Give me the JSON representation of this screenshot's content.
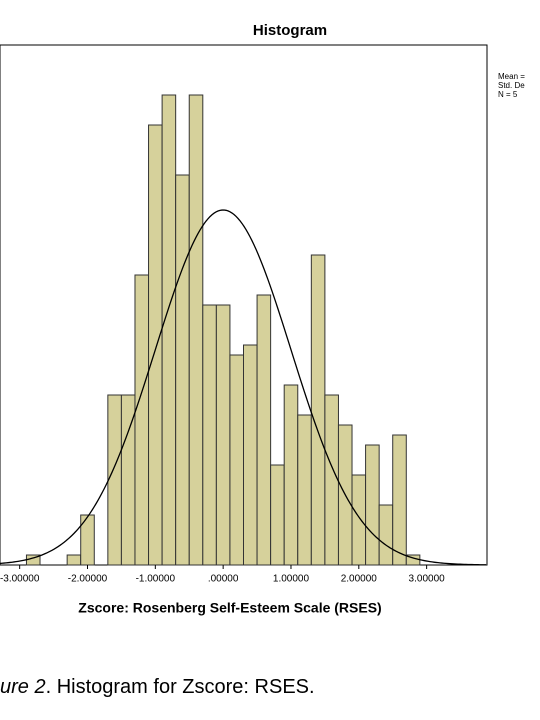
{
  "chart_data": {
    "type": "histogram",
    "title": "Histogram",
    "xlabel": "Zscore:  Rosenberg Self-Esteem Scale (RSES)",
    "bins": [
      -2.9,
      -2.7,
      -2.5,
      -2.3,
      -2.1,
      -1.9,
      -1.7,
      -1.5,
      -1.3,
      -1.1,
      -0.9,
      -0.7,
      -0.5,
      -0.3,
      -0.1,
      0.1,
      0.3,
      0.5,
      0.7,
      0.9,
      1.1,
      1.3,
      1.5,
      1.7,
      1.9,
      2.1,
      2.3,
      2.5,
      2.7,
      2.9
    ],
    "values": [
      1,
      0,
      0,
      1,
      5,
      0,
      17,
      17,
      29,
      44,
      47,
      39,
      47,
      26,
      26,
      21,
      22,
      27,
      10,
      18,
      15,
      31,
      17,
      14,
      9,
      12,
      6,
      13,
      1
    ],
    "color": "#d6d19b",
    "normal_curve": {
      "mean": 0,
      "sd": 1,
      "peak": 35.5
    },
    "xlim": [
      -3.29,
      3.89
    ],
    "ylim": [
      0,
      52
    ],
    "xticks": [
      {
        "value": -3,
        "label": "-3.00000"
      },
      {
        "value": -2,
        "label": "-2.00000"
      },
      {
        "value": -1,
        "label": "-1.00000"
      },
      {
        "value": 0,
        "label": ".00000"
      },
      {
        "value": 1,
        "label": "1.00000"
      },
      {
        "value": 2,
        "label": "2.00000"
      },
      {
        "value": 3,
        "label": "3.00000"
      }
    ],
    "legend_text": [
      "Mean =",
      "Std. De",
      "N = 5"
    ]
  },
  "caption": {
    "label": "ure 2",
    "text": ". Histogram for Zscore:  RSES."
  }
}
